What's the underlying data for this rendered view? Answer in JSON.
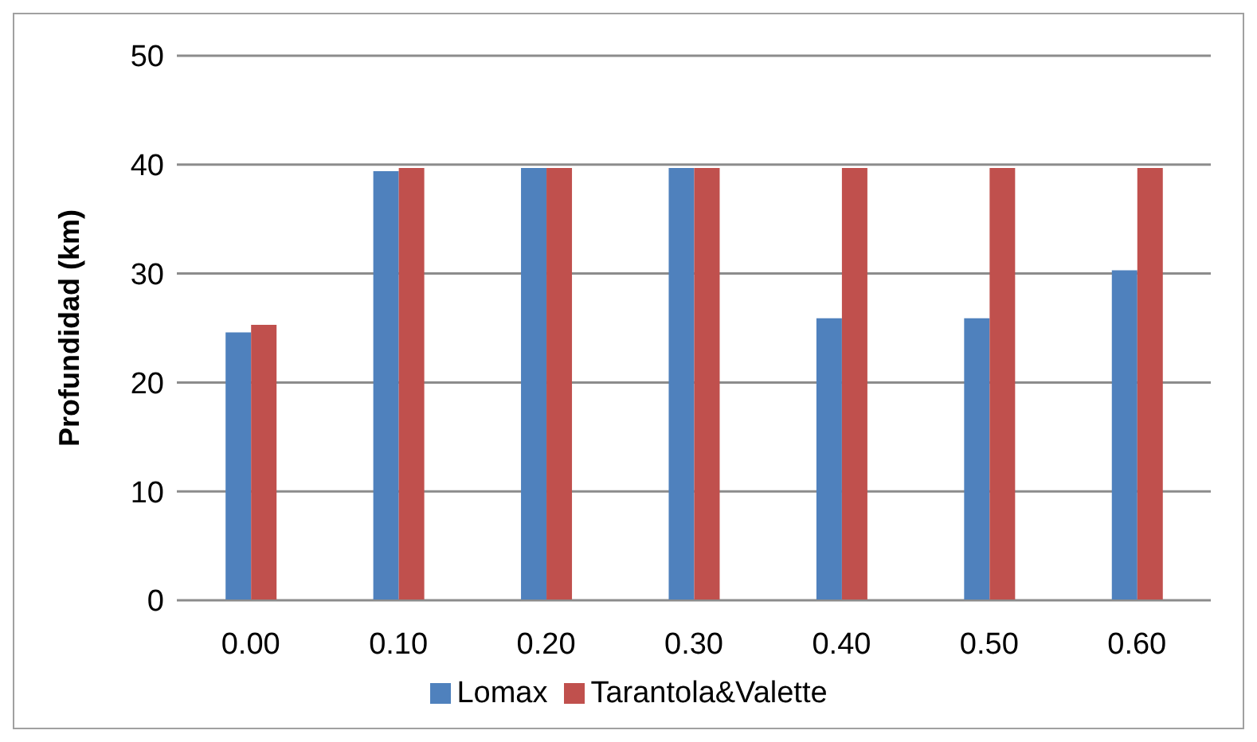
{
  "chart_data": {
    "type": "bar",
    "ylabel": "Profundidad (km)",
    "categories": [
      "0.00",
      "0.10",
      "0.20",
      "0.30",
      "0.40",
      "0.50",
      "0.60"
    ],
    "series": [
      {
        "name": "Lomax",
        "color": "#4f81bd",
        "values": [
          24.6,
          39.4,
          39.7,
          39.7,
          25.9,
          25.9,
          30.3
        ]
      },
      {
        "name": "Tarantola&Valette",
        "color": "#c0504d",
        "values": [
          25.3,
          39.7,
          39.7,
          39.7,
          39.7,
          39.7,
          39.7
        ]
      }
    ],
    "ylim": [
      0,
      50
    ],
    "yticks": [
      0,
      10,
      20,
      30,
      40,
      50
    ],
    "grid": "y",
    "legend": "bottom"
  }
}
